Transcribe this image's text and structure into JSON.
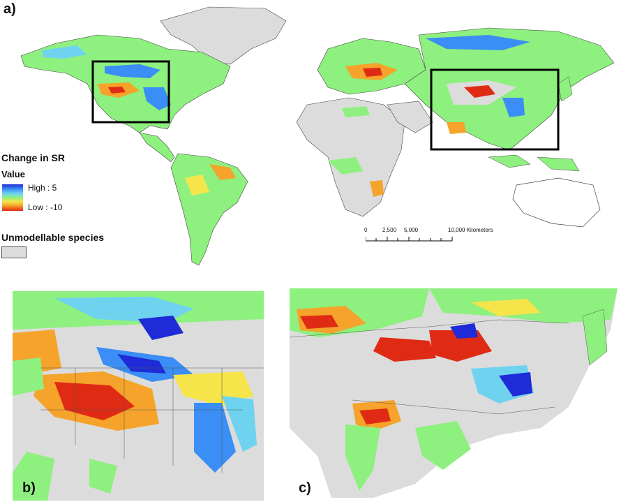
{
  "panels": {
    "a": "a)",
    "b": "b)",
    "c": "c)"
  },
  "legend": {
    "title": "Change in SR",
    "subtitle": "Value",
    "high_label": "High : 5",
    "low_label": "Low : -10",
    "unmodellable_label": "Unmodellable species"
  },
  "scalebar": {
    "ticks": [
      "0",
      "2,500",
      "5,000",
      "10,000 Kilometers"
    ]
  },
  "colors": {
    "high": "#1f2bd6",
    "mid_high": "#6fd3f0",
    "neutral": "#8ef07f",
    "mid_low": "#f5a32a",
    "low": "#e02b14",
    "unmodellable": "#dcdcdc",
    "ocean": "#ffffff"
  }
}
